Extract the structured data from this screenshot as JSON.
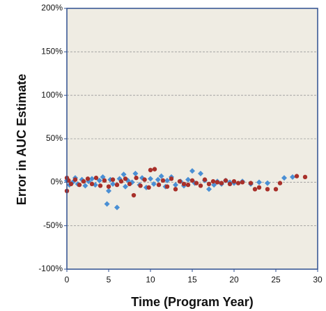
{
  "chart_data": {
    "type": "scatter",
    "x_label": "Time (Program Year)",
    "y_label": "Error in AUC Estimate",
    "xlim": [
      0,
      30
    ],
    "xticks": [
      0,
      5,
      10,
      15,
      20,
      25,
      30
    ],
    "ylim": [
      -100,
      200
    ],
    "yticks": [
      {
        "value": -100,
        "label": "-100%"
      },
      {
        "value": -50,
        "label": "-50%"
      },
      {
        "value": 0,
        "label": "0%"
      },
      {
        "value": 50,
        "label": "50%"
      },
      {
        "value": 100,
        "label": "100%"
      },
      {
        "value": 150,
        "label": "150%"
      },
      {
        "value": 200,
        "label": "200%"
      }
    ],
    "grid": true,
    "series": [
      {
        "color": "#4a8fd4",
        "marker": "diamond",
        "x": [
          0,
          0.3,
          0.7,
          1,
          1.3,
          1.8,
          2.2,
          2.6,
          3,
          3.4,
          3.9,
          4.3,
          4.8,
          5,
          5.2,
          5.5,
          6,
          6.3,
          6.8,
          7,
          7.3,
          7.8,
          8.2,
          8.7,
          9,
          9.5,
          10,
          10.4,
          10.9,
          11.3,
          11.8,
          12,
          12.5,
          13,
          13.6,
          14,
          14.5,
          15,
          15.3,
          16,
          16.5,
          17,
          17.6,
          18,
          18.5,
          19,
          19.5,
          20,
          21,
          22,
          23,
          24,
          26,
          27
        ],
        "values": [
          2,
          -3,
          0,
          5,
          -2,
          3,
          -4,
          1,
          4,
          -3,
          2,
          6,
          -25,
          -10,
          3,
          -2,
          -29,
          4,
          9,
          -5,
          2,
          0,
          10,
          -3,
          5,
          -6,
          4,
          -2,
          3,
          7,
          -5,
          2,
          6,
          -3,
          1,
          -4,
          3,
          13,
          -1,
          10,
          2,
          -8,
          -3,
          1,
          -2,
          2,
          0,
          -1,
          1,
          -2,
          0,
          -1,
          5,
          6
        ]
      },
      {
        "color": "#a8302a",
        "marker": "circle",
        "x": [
          0,
          0,
          0.2,
          0.5,
          1,
          1.5,
          2,
          2.5,
          3,
          3.5,
          4,
          4.5,
          5,
          5.5,
          6,
          6.5,
          7,
          7.5,
          8,
          8.3,
          8.8,
          9.3,
          9.8,
          10,
          10.5,
          11,
          11.5,
          12,
          12.5,
          13,
          13.5,
          14,
          14.5,
          15,
          15.5,
          16,
          16.5,
          17,
          17.5,
          18,
          18.5,
          19,
          19.5,
          20,
          20.5,
          21,
          22,
          22.5,
          23,
          24,
          25,
          25.5,
          27.5,
          28.5
        ],
        "values": [
          -10,
          5,
          2,
          -2,
          3,
          -3,
          1,
          4,
          -2,
          5,
          -4,
          2,
          -5,
          3,
          -3,
          1,
          4,
          -2,
          -15,
          5,
          -4,
          3,
          -6,
          14,
          15,
          -3,
          2,
          -5,
          4,
          -8,
          1,
          -2,
          -3,
          2,
          -1,
          -4,
          3,
          -2,
          1,
          0,
          -1,
          2,
          -2,
          1,
          -1,
          0,
          -1,
          -8,
          -6,
          -8,
          -8,
          -1,
          7,
          6
        ]
      }
    ]
  }
}
